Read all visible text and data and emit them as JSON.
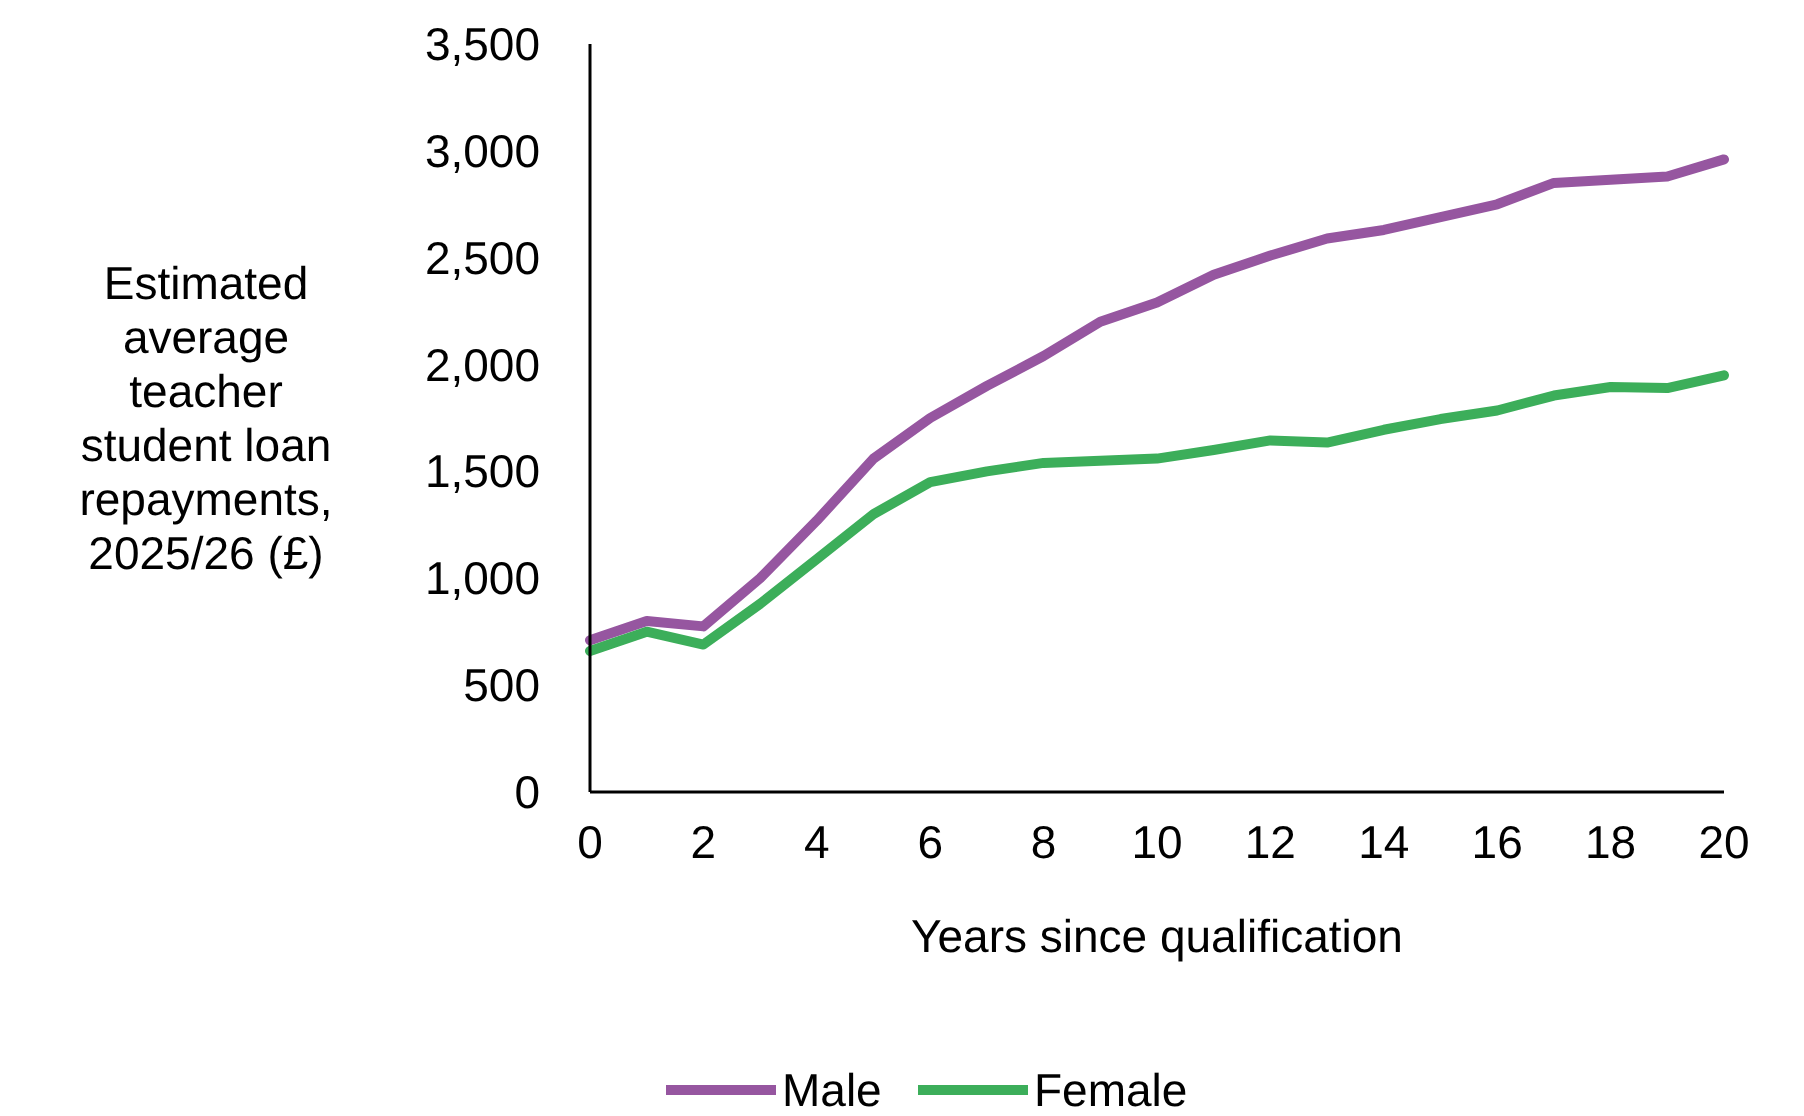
{
  "chart_data": {
    "type": "line",
    "xlabel": "Years since qualification",
    "ylabel": "Estimated average teacher student loan repayments, 2025/26 (£)",
    "x": [
      0,
      1,
      2,
      3,
      4,
      5,
      6,
      7,
      8,
      9,
      10,
      11,
      12,
      13,
      14,
      15,
      16,
      17,
      18,
      19,
      20
    ],
    "xlim": [
      0,
      20
    ],
    "xticks": [
      0,
      2,
      4,
      6,
      8,
      10,
      12,
      14,
      16,
      18,
      20
    ],
    "ylim": [
      0,
      3500
    ],
    "yticks": [
      {
        "value": 0,
        "label": "0"
      },
      {
        "value": 500,
        "label": "500"
      },
      {
        "value": 1000,
        "label": "1,000"
      },
      {
        "value": 1500,
        "label": "1,500"
      },
      {
        "value": 2000,
        "label": "2,000"
      },
      {
        "value": 2500,
        "label": "2,500"
      },
      {
        "value": 3000,
        "label": "3,000"
      },
      {
        "value": 3500,
        "label": "3,500"
      }
    ],
    "grid": false,
    "legend": "bottom",
    "line_style": "solid",
    "marker": "none",
    "series": [
      {
        "name": "Male",
        "color": "#9656a0",
        "values": [
          710,
          800,
          775,
          1000,
          1270,
          1560,
          1750,
          1900,
          2040,
          2200,
          2290,
          2420,
          2510,
          2590,
          2630,
          2690,
          2750,
          2850,
          2865,
          2880,
          2960
        ]
      },
      {
        "name": "Female",
        "color": "#3cae5a",
        "values": [
          660,
          750,
          690,
          880,
          1090,
          1300,
          1450,
          1500,
          1540,
          1550,
          1560,
          1600,
          1645,
          1635,
          1695,
          1745,
          1785,
          1855,
          1895,
          1890,
          1950
        ]
      }
    ]
  }
}
